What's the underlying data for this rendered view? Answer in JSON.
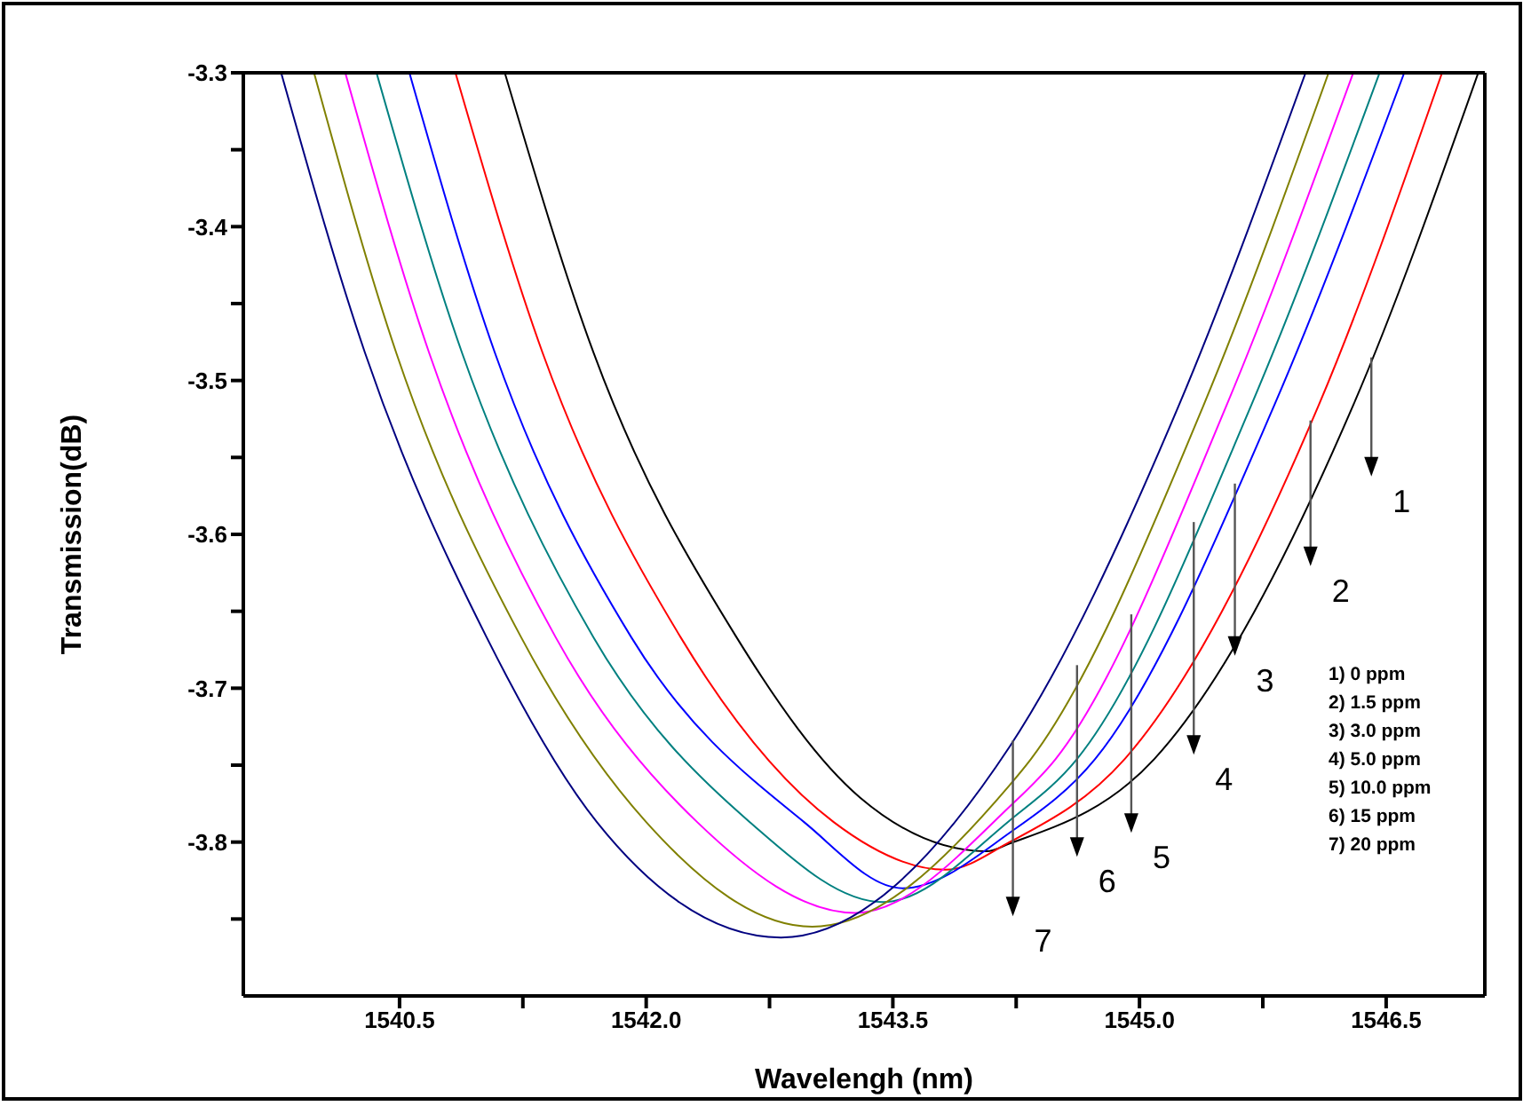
{
  "chart_data": {
    "type": "line",
    "xlabel": "Wavelengh (nm)",
    "ylabel": "Transmission(dB)",
    "xlim": [
      1539.55,
      1547.1
    ],
    "ylim": [
      -3.9,
      -3.3
    ],
    "xticks": [
      1540.5,
      {
        "value": 1541.25,
        "label": null
      },
      {
        "value": 1542,
        "label": "1542.0"
      },
      {
        "value": 1542.75,
        "label": null
      },
      1543.5,
      {
        "value": 1544.25,
        "label": null
      },
      {
        "value": 1545,
        "label": "1545.0"
      },
      {
        "value": 1545.75,
        "label": null
      },
      1546.5
    ],
    "yticks": [
      -3.3,
      {
        "value": -3.35,
        "label": null
      },
      -3.4,
      {
        "value": -3.45,
        "label": null
      },
      -3.5,
      {
        "value": -3.55,
        "label": null
      },
      -3.6,
      {
        "value": -3.65,
        "label": null
      },
      -3.7,
      {
        "value": -3.75,
        "label": null
      },
      -3.8,
      {
        "value": -3.85,
        "label": null
      }
    ],
    "grid": false,
    "legend": false,
    "marker": "none",
    "line_style": "solid",
    "series": [
      {
        "color": "#000000",
        "x": [
          1541.14,
          1541.68,
          1542.55,
          1543.3,
          1544.07,
          1544.21,
          1545.09,
          1546.3,
          1547.06
        ],
        "values": [
          -3.3,
          -3.482,
          -3.667,
          -3.771,
          -3.806,
          -3.801,
          -3.746,
          -3.516,
          -3.3
        ]
      },
      {
        "color": "#ff0000",
        "x": [
          1540.84,
          1541.37,
          1542.21,
          1543.14,
          1543.82,
          1544.21,
          1544.91,
          1546.09,
          1546.84
        ],
        "values": [
          -3.3,
          -3.482,
          -3.667,
          -3.787,
          -3.818,
          -3.8,
          -3.746,
          -3.516,
          -3.3
        ]
      },
      {
        "color": "#0000ff",
        "x": [
          1540.56,
          1541.08,
          1541.91,
          1542.96,
          1543.56,
          1544.21,
          1544.73,
          1545.82,
          1546.61
        ],
        "values": [
          -3.3,
          -3.482,
          -3.667,
          -3.787,
          -3.83,
          -3.794,
          -3.746,
          -3.516,
          -3.3
        ]
      },
      {
        "color": "#008080",
        "x": [
          1540.36,
          1540.88,
          1541.68,
          1542.63,
          1543.44,
          1544.21,
          1544.62,
          1545.68,
          1546.46
        ],
        "values": [
          -3.3,
          -3.482,
          -3.667,
          -3.787,
          -3.839,
          -3.786,
          -3.746,
          -3.516,
          -3.3
        ]
      },
      {
        "color": "#ff00ff",
        "x": [
          1540.17,
          1540.68,
          1541.45,
          1542.31,
          1543.27,
          1544.21,
          1544.49,
          1545.53,
          1546.3
        ],
        "values": [
          -3.3,
          -3.482,
          -3.667,
          -3.787,
          -3.846,
          -3.777,
          -3.746,
          -3.516,
          -3.3
        ]
      },
      {
        "color": "#808000",
        "x": [
          1539.98,
          1540.48,
          1541.24,
          1542.0,
          1543.01,
          1544.21,
          1544.34,
          1545.39,
          1546.15
        ],
        "values": [
          -3.3,
          -3.482,
          -3.667,
          -3.787,
          -3.855,
          -3.763,
          -3.746,
          -3.516,
          -3.3
        ]
      },
      {
        "color": "#000080",
        "x": [
          1539.78,
          1540.29,
          1541.03,
          1541.7,
          1542.82,
          1544.21,
          1545.24,
          1546.01
        ],
        "values": [
          -3.3,
          -3.482,
          -3.667,
          -3.787,
          -3.862,
          -3.738,
          -3.516,
          -3.3
        ]
      }
    ],
    "annotations": [
      {
        "text": "1",
        "x": 1546.41,
        "y": -3.485
      },
      {
        "text": "2",
        "x": 1546.04,
        "y": -3.526
      },
      {
        "text": "3",
        "x": 1545.58,
        "y": -3.567
      },
      {
        "text": "4",
        "x": 1545.33,
        "y": -3.592
      },
      {
        "text": "5",
        "x": 1544.95,
        "y": -3.652
      },
      {
        "text": "6",
        "x": 1544.62,
        "y": -3.685
      },
      {
        "text": "7",
        "x": 1544.23,
        "y": -3.734
      },
      "1) 0 ppm",
      "2) 1.5 ppm",
      "3) 3.0 ppm",
      "4) 5.0 ppm",
      "5) 10.0 ppm",
      "6) 15 ppm",
      "7) 20 ppm"
    ]
  }
}
